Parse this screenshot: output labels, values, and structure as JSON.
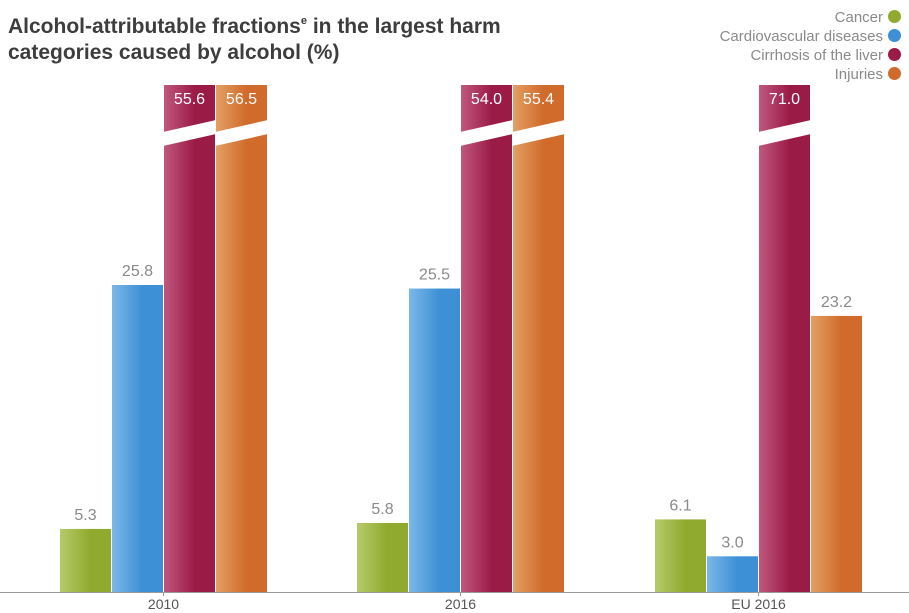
{
  "chart_data": {
    "type": "bar",
    "title_main": "Alcohol-attributable fractions",
    "title_sup": "e",
    "title_rest": " in the largest harm categories caused by alcohol (%)",
    "categories": [
      "2010",
      "2016",
      "EU 2016"
    ],
    "ylim": [
      0,
      30
    ],
    "axis_break": true,
    "grid": false,
    "legend_position": "top-right",
    "series": [
      {
        "name": "Cancer",
        "color": "#8faa2e",
        "color_light": "#b7ca6b",
        "values": [
          5.3,
          5.8,
          6.1
        ]
      },
      {
        "name": "Cardiovascular diseases",
        "color": "#3d8fd6",
        "color_light": "#7bb8e8",
        "values": [
          25.8,
          25.5,
          3.0
        ]
      },
      {
        "name": "Cirrhosis of the liver",
        "color": "#9b1b47",
        "color_light": "#c0587e",
        "values": [
          55.6,
          54.0,
          71.0
        ]
      },
      {
        "name": "Injuries",
        "color": "#d06b2c",
        "color_light": "#e3a063",
        "values": [
          56.5,
          55.4,
          23.2
        ]
      }
    ]
  }
}
